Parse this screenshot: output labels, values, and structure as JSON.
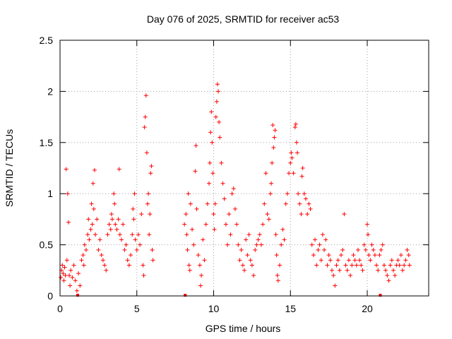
{
  "chart_data": {
    "type": "scatter",
    "title": "Day 076 of 2025, SRMTID for receiver ac53",
    "xlabel": "GPS time / hours",
    "ylabel": "SRMTID / TECUs",
    "xlim": [
      0,
      24
    ],
    "ylim": [
      0,
      2.5
    ],
    "xticks": [
      0,
      5,
      10,
      15,
      20
    ],
    "xtick_labels": [
      "0",
      "5",
      "10",
      "15",
      "20"
    ],
    "yticks": [
      0,
      0.5,
      1,
      1.5,
      2,
      2.5
    ],
    "ytick_labels": [
      "0",
      "0.5",
      "1",
      "1.5",
      "2",
      "2.5"
    ],
    "grid": true,
    "marker": "+",
    "series_color": "#ff0000",
    "baseline_markers": [
      1.15,
      8.15,
      20.85
    ],
    "series": [
      {
        "name": "SRMTID",
        "points": [
          [
            0.05,
            0.18
          ],
          [
            0.1,
            0.25
          ],
          [
            0.15,
            0.3
          ],
          [
            0.2,
            0.22
          ],
          [
            0.25,
            0.15
          ],
          [
            0.3,
            0.28
          ],
          [
            0.35,
            0.2
          ],
          [
            0.4,
            1.24
          ],
          [
            0.45,
            0.35
          ],
          [
            0.5,
            1.0
          ],
          [
            0.55,
            0.72
          ],
          [
            0.6,
            0.2
          ],
          [
            0.65,
            0.1
          ],
          [
            0.7,
            0.25
          ],
          [
            0.8,
            0.18
          ],
          [
            0.9,
            0.3
          ],
          [
            1.0,
            0.15
          ],
          [
            1.1,
            0.05
          ],
          [
            1.2,
            0.22
          ],
          [
            1.3,
            0.1
          ],
          [
            1.4,
            0.35
          ],
          [
            1.5,
            0.4
          ],
          [
            1.55,
            0.3
          ],
          [
            1.6,
            0.5
          ],
          [
            1.7,
            0.45
          ],
          [
            1.8,
            0.6
          ],
          [
            1.85,
            0.75
          ],
          [
            1.9,
            0.55
          ],
          [
            2.0,
            0.65
          ],
          [
            2.05,
            0.9
          ],
          [
            2.1,
            0.7
          ],
          [
            2.15,
            1.1
          ],
          [
            2.2,
            0.85
          ],
          [
            2.25,
            1.23
          ],
          [
            2.3,
            0.6
          ],
          [
            2.4,
            0.75
          ],
          [
            2.5,
            0.45
          ],
          [
            2.6,
            0.55
          ],
          [
            2.7,
            0.4
          ],
          [
            2.8,
            0.35
          ],
          [
            2.9,
            0.3
          ],
          [
            3.0,
            0.25
          ],
          [
            3.1,
            0.6
          ],
          [
            3.2,
            0.7
          ],
          [
            3.3,
            0.65
          ],
          [
            3.35,
            0.8
          ],
          [
            3.4,
            0.75
          ],
          [
            3.5,
            1.0
          ],
          [
            3.55,
            0.9
          ],
          [
            3.6,
            0.7
          ],
          [
            3.7,
            0.65
          ],
          [
            3.8,
            0.75
          ],
          [
            3.85,
            1.24
          ],
          [
            3.9,
            0.6
          ],
          [
            4.0,
            0.55
          ],
          [
            4.1,
            0.7
          ],
          [
            4.2,
            0.45
          ],
          [
            4.3,
            0.5
          ],
          [
            4.4,
            0.35
          ],
          [
            4.5,
            0.3
          ],
          [
            4.6,
            0.4
          ],
          [
            4.7,
            0.6
          ],
          [
            4.75,
            0.85
          ],
          [
            4.8,
            0.75
          ],
          [
            4.85,
            1.0
          ],
          [
            4.9,
            0.55
          ],
          [
            5.0,
            0.45
          ],
          [
            5.1,
            0.6
          ],
          [
            5.2,
            0.5
          ],
          [
            5.3,
            0.8
          ],
          [
            5.4,
            0.3
          ],
          [
            5.45,
            0.2
          ],
          [
            5.5,
            1.65
          ],
          [
            5.55,
            1.75
          ],
          [
            5.6,
            1.96
          ],
          [
            5.65,
            1.4
          ],
          [
            5.7,
            0.9
          ],
          [
            5.75,
            1.0
          ],
          [
            5.8,
            0.6
          ],
          [
            5.85,
            0.8
          ],
          [
            5.9,
            1.2
          ],
          [
            5.95,
            1.27
          ],
          [
            6.0,
            0.45
          ],
          [
            6.05,
            0.35
          ],
          [
            8.1,
            0.7
          ],
          [
            8.2,
            0.8
          ],
          [
            8.25,
            0.6
          ],
          [
            8.3,
            0.45
          ],
          [
            8.35,
            1.0
          ],
          [
            8.4,
            0.3
          ],
          [
            8.45,
            0.25
          ],
          [
            8.5,
            0.9
          ],
          [
            8.6,
            0.65
          ],
          [
            8.7,
            0.5
          ],
          [
            8.8,
            1.22
          ],
          [
            8.85,
            1.47
          ],
          [
            8.9,
            0.85
          ],
          [
            9.0,
            0.4
          ],
          [
            9.1,
            0.3
          ],
          [
            9.15,
            0.1
          ],
          [
            9.2,
            0.2
          ],
          [
            9.3,
            0.55
          ],
          [
            9.4,
            0.35
          ],
          [
            9.5,
            0.7
          ],
          [
            9.6,
            0.9
          ],
          [
            9.7,
            1.1
          ],
          [
            9.75,
            1.3
          ],
          [
            9.8,
            1.6
          ],
          [
            9.85,
            1.8
          ],
          [
            9.9,
            1.5
          ],
          [
            9.95,
            1.2
          ],
          [
            10.0,
            0.8
          ],
          [
            10.05,
            0.65
          ],
          [
            10.1,
            0.9
          ],
          [
            10.15,
            1.75
          ],
          [
            10.2,
            1.9
          ],
          [
            10.25,
            2.07
          ],
          [
            10.3,
            2.0
          ],
          [
            10.35,
            1.7
          ],
          [
            10.4,
            1.55
          ],
          [
            10.5,
            1.3
          ],
          [
            10.6,
            1.1
          ],
          [
            10.7,
            0.95
          ],
          [
            10.8,
            0.7
          ],
          [
            10.9,
            0.5
          ],
          [
            11.0,
            0.8
          ],
          [
            11.1,
            0.6
          ],
          [
            11.2,
            1.0
          ],
          [
            11.3,
            1.05
          ],
          [
            11.4,
            0.85
          ],
          [
            11.5,
            0.7
          ],
          [
            11.6,
            0.5
          ],
          [
            11.7,
            0.35
          ],
          [
            11.8,
            0.45
          ],
          [
            11.9,
            0.3
          ],
          [
            12.0,
            0.25
          ],
          [
            12.1,
            0.55
          ],
          [
            12.2,
            0.4
          ],
          [
            12.3,
            0.6
          ],
          [
            12.4,
            0.35
          ],
          [
            12.5,
            0.3
          ],
          [
            12.6,
            0.2
          ],
          [
            12.7,
            0.45
          ],
          [
            12.8,
            0.5
          ],
          [
            12.9,
            0.55
          ],
          [
            13.0,
            0.6
          ],
          [
            13.1,
            0.5
          ],
          [
            13.2,
            0.7
          ],
          [
            13.3,
            0.9
          ],
          [
            13.4,
            1.2
          ],
          [
            13.5,
            0.8
          ],
          [
            13.6,
            0.75
          ],
          [
            13.7,
            1.0
          ],
          [
            13.75,
            1.1
          ],
          [
            13.8,
            1.3
          ],
          [
            13.85,
            1.67
          ],
          [
            13.9,
            1.45
          ],
          [
            13.95,
            1.55
          ],
          [
            14.0,
            1.62
          ],
          [
            14.05,
            0.6
          ],
          [
            14.1,
            0.4
          ],
          [
            14.15,
            0.2
          ],
          [
            14.2,
            0.15
          ],
          [
            14.3,
            0.3
          ],
          [
            14.4,
            0.5
          ],
          [
            14.5,
            0.65
          ],
          [
            14.6,
            0.55
          ],
          [
            14.7,
            0.9
          ],
          [
            14.8,
            1.0
          ],
          [
            14.9,
            1.2
          ],
          [
            15.0,
            1.3
          ],
          [
            15.05,
            1.4
          ],
          [
            15.1,
            1.35
          ],
          [
            15.2,
            1.2
          ],
          [
            15.3,
            1.65
          ],
          [
            15.35,
            1.68
          ],
          [
            15.4,
            1.5
          ],
          [
            15.45,
            1.4
          ],
          [
            15.5,
            1.0
          ],
          [
            15.6,
            0.9
          ],
          [
            15.7,
            0.8
          ],
          [
            15.75,
            1.17
          ],
          [
            15.8,
            1.25
          ],
          [
            15.9,
            1.0
          ],
          [
            16.0,
            0.95
          ],
          [
            16.1,
            0.8
          ],
          [
            16.2,
            0.9
          ],
          [
            16.3,
            0.85
          ],
          [
            16.4,
            0.5
          ],
          [
            16.5,
            0.4
          ],
          [
            16.6,
            0.55
          ],
          [
            16.7,
            0.3
          ],
          [
            16.8,
            0.45
          ],
          [
            16.9,
            0.5
          ],
          [
            17.0,
            0.35
          ],
          [
            17.1,
            0.6
          ],
          [
            17.2,
            0.45
          ],
          [
            17.3,
            0.55
          ],
          [
            17.4,
            0.3
          ],
          [
            17.5,
            0.4
          ],
          [
            17.6,
            0.35
          ],
          [
            17.7,
            0.25
          ],
          [
            17.8,
            0.2
          ],
          [
            17.9,
            0.1
          ],
          [
            18.0,
            0.3
          ],
          [
            18.1,
            0.35
          ],
          [
            18.2,
            0.25
          ],
          [
            18.3,
            0.4
          ],
          [
            18.4,
            0.45
          ],
          [
            18.5,
            0.8
          ],
          [
            18.6,
            0.3
          ],
          [
            18.7,
            0.25
          ],
          [
            18.8,
            0.35
          ],
          [
            18.9,
            0.2
          ],
          [
            19.0,
            0.3
          ],
          [
            19.1,
            0.4
          ],
          [
            19.2,
            0.35
          ],
          [
            19.3,
            0.3
          ],
          [
            19.4,
            0.45
          ],
          [
            19.5,
            0.35
          ],
          [
            19.6,
            0.3
          ],
          [
            19.7,
            0.25
          ],
          [
            19.8,
            0.5
          ],
          [
            19.9,
            0.45
          ],
          [
            20.0,
            0.7
          ],
          [
            20.05,
            0.6
          ],
          [
            20.1,
            0.4
          ],
          [
            20.2,
            0.35
          ],
          [
            20.3,
            0.5
          ],
          [
            20.4,
            0.45
          ],
          [
            20.5,
            0.4
          ],
          [
            20.6,
            0.3
          ],
          [
            20.7,
            0.25
          ],
          [
            20.8,
            0.4
          ],
          [
            20.9,
            0.45
          ],
          [
            21.0,
            0.5
          ],
          [
            21.1,
            0.3
          ],
          [
            21.2,
            0.25
          ],
          [
            21.3,
            0.2
          ],
          [
            21.4,
            0.15
          ],
          [
            21.5,
            0.3
          ],
          [
            21.6,
            0.35
          ],
          [
            21.7,
            0.25
          ],
          [
            21.8,
            0.2
          ],
          [
            21.9,
            0.3
          ],
          [
            22.0,
            0.35
          ],
          [
            22.1,
            0.3
          ],
          [
            22.2,
            0.4
          ],
          [
            22.3,
            0.25
          ],
          [
            22.4,
            0.3
          ],
          [
            22.5,
            0.35
          ],
          [
            22.6,
            0.45
          ],
          [
            22.7,
            0.4
          ],
          [
            22.75,
            0.3
          ]
        ]
      }
    ]
  }
}
